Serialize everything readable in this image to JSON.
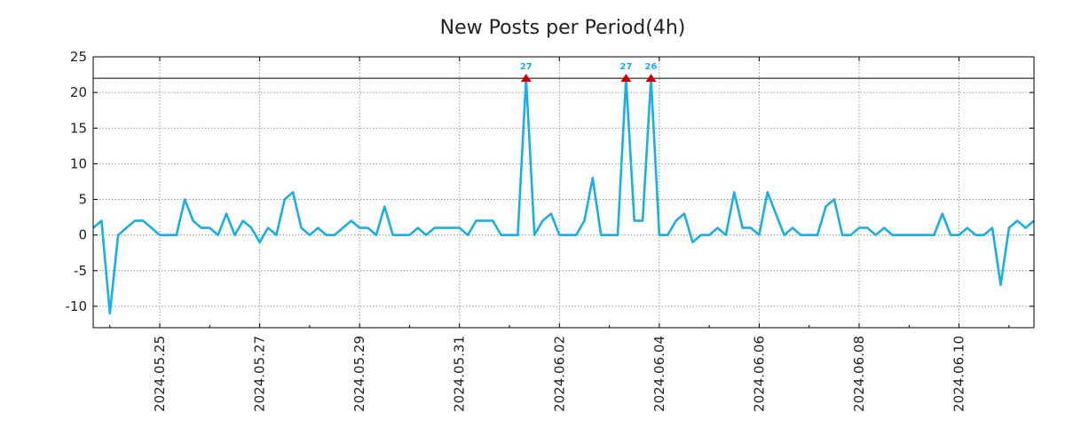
{
  "chart_data": {
    "type": "line",
    "title": "New Posts per Period(4h)",
    "xlabel": "",
    "ylabel": "",
    "ylim": [
      -13,
      25
    ],
    "y_ticks": [
      25,
      20,
      15,
      10,
      5,
      0,
      -5,
      -10
    ],
    "x_tick_labels": [
      "2024.05.25",
      "2024.05.27",
      "2024.05.29",
      "2024.05.31",
      "2024.06.02",
      "2024.06.04",
      "2024.06.06",
      "2024.06.08",
      "2024.06.10"
    ],
    "x_tick_index": [
      8,
      20,
      32,
      44,
      56,
      68,
      80,
      92,
      104
    ],
    "grid": true,
    "cap_line": 22,
    "series": [
      {
        "name": "New Posts",
        "color": "#1aaee8",
        "values": [
          1,
          2,
          -11,
          0,
          1,
          2,
          2,
          1,
          0,
          0,
          0,
          5,
          2,
          1,
          1,
          0,
          3,
          0,
          2,
          1,
          -1,
          1,
          0,
          5,
          6,
          1,
          0,
          1,
          0,
          0,
          1,
          2,
          1,
          1,
          0,
          4,
          0,
          0,
          0,
          1,
          0,
          1,
          1,
          1,
          1,
          0,
          2,
          2,
          2,
          0,
          0,
          0,
          27,
          0,
          2,
          3,
          0,
          0,
          0,
          2,
          8,
          0,
          0,
          0,
          27,
          2,
          2,
          26,
          0,
          0,
          2,
          3,
          -1,
          0,
          0,
          1,
          0,
          6,
          1,
          1,
          0,
          6,
          3,
          0,
          1,
          0,
          0,
          0,
          4,
          5,
          0,
          0,
          1,
          1,
          0,
          1,
          0,
          0,
          0,
          0,
          0,
          0,
          3,
          0,
          0,
          1,
          0,
          0,
          1,
          -7,
          1,
          2,
          1,
          2
        ]
      }
    ],
    "peaks": [
      {
        "index": 52,
        "label": "27"
      },
      {
        "index": 64,
        "label": "27"
      },
      {
        "index": 67,
        "label": "26"
      }
    ],
    "peak_marker_color": "#cc0000",
    "peak_label_color": "#1aaee8"
  }
}
